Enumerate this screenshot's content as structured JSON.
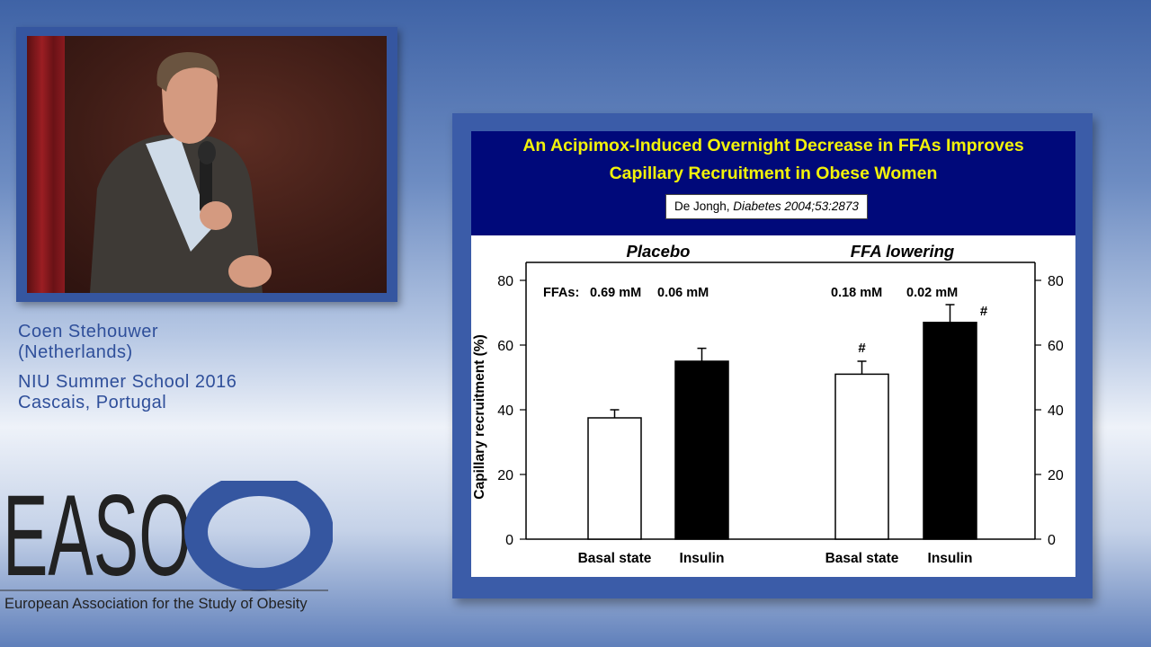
{
  "speaker": {
    "name": "Coen Stehouwer",
    "country": "(Netherlands)",
    "event": "NIU Summer School 2016",
    "location": "Cascais, Portugal"
  },
  "logo": {
    "letters": "EASO",
    "tagline": "European Association for the Study of Obesity",
    "color": "#3556a0"
  },
  "slide": {
    "title_line1": "An Acipimox-Induced Overnight Decrease in FFAs Improves",
    "title_line2": "Capillary Recruitment in Obese Women",
    "citation_author": "De Jongh, ",
    "citation_journal": "Diabetes 2004;53:2873",
    "header_color": "#00097a",
    "title_color": "#f2f20a"
  },
  "chart_data": {
    "type": "bar",
    "ylabel": "Capillary recruitment (%)",
    "ylim": [
      0,
      80
    ],
    "yticks": [
      0,
      20,
      40,
      60,
      80
    ],
    "ytick_labels_both_sides": true,
    "groups": [
      {
        "name": "Placebo",
        "ffa_prefix": "FFAs:",
        "ffa_labels": [
          "0.69 mM",
          "0.06 mM"
        ],
        "bars": [
          {
            "category": "Basal state",
            "value": 37.5,
            "error": 2.5,
            "fill": "#ffffff",
            "marker": ""
          },
          {
            "category": "Insulin",
            "value": 55,
            "error": 4,
            "fill": "#000000",
            "marker": ""
          }
        ]
      },
      {
        "name": "FFA lowering",
        "ffa_prefix": "",
        "ffa_labels": [
          "0.18 mM",
          "0.02 mM"
        ],
        "bars": [
          {
            "category": "Basal state",
            "value": 51,
            "error": 4,
            "fill": "#ffffff",
            "marker": "#"
          },
          {
            "category": "Insulin",
            "value": 67,
            "error": 5.5,
            "fill": "#000000",
            "marker": "#"
          }
        ]
      }
    ]
  }
}
